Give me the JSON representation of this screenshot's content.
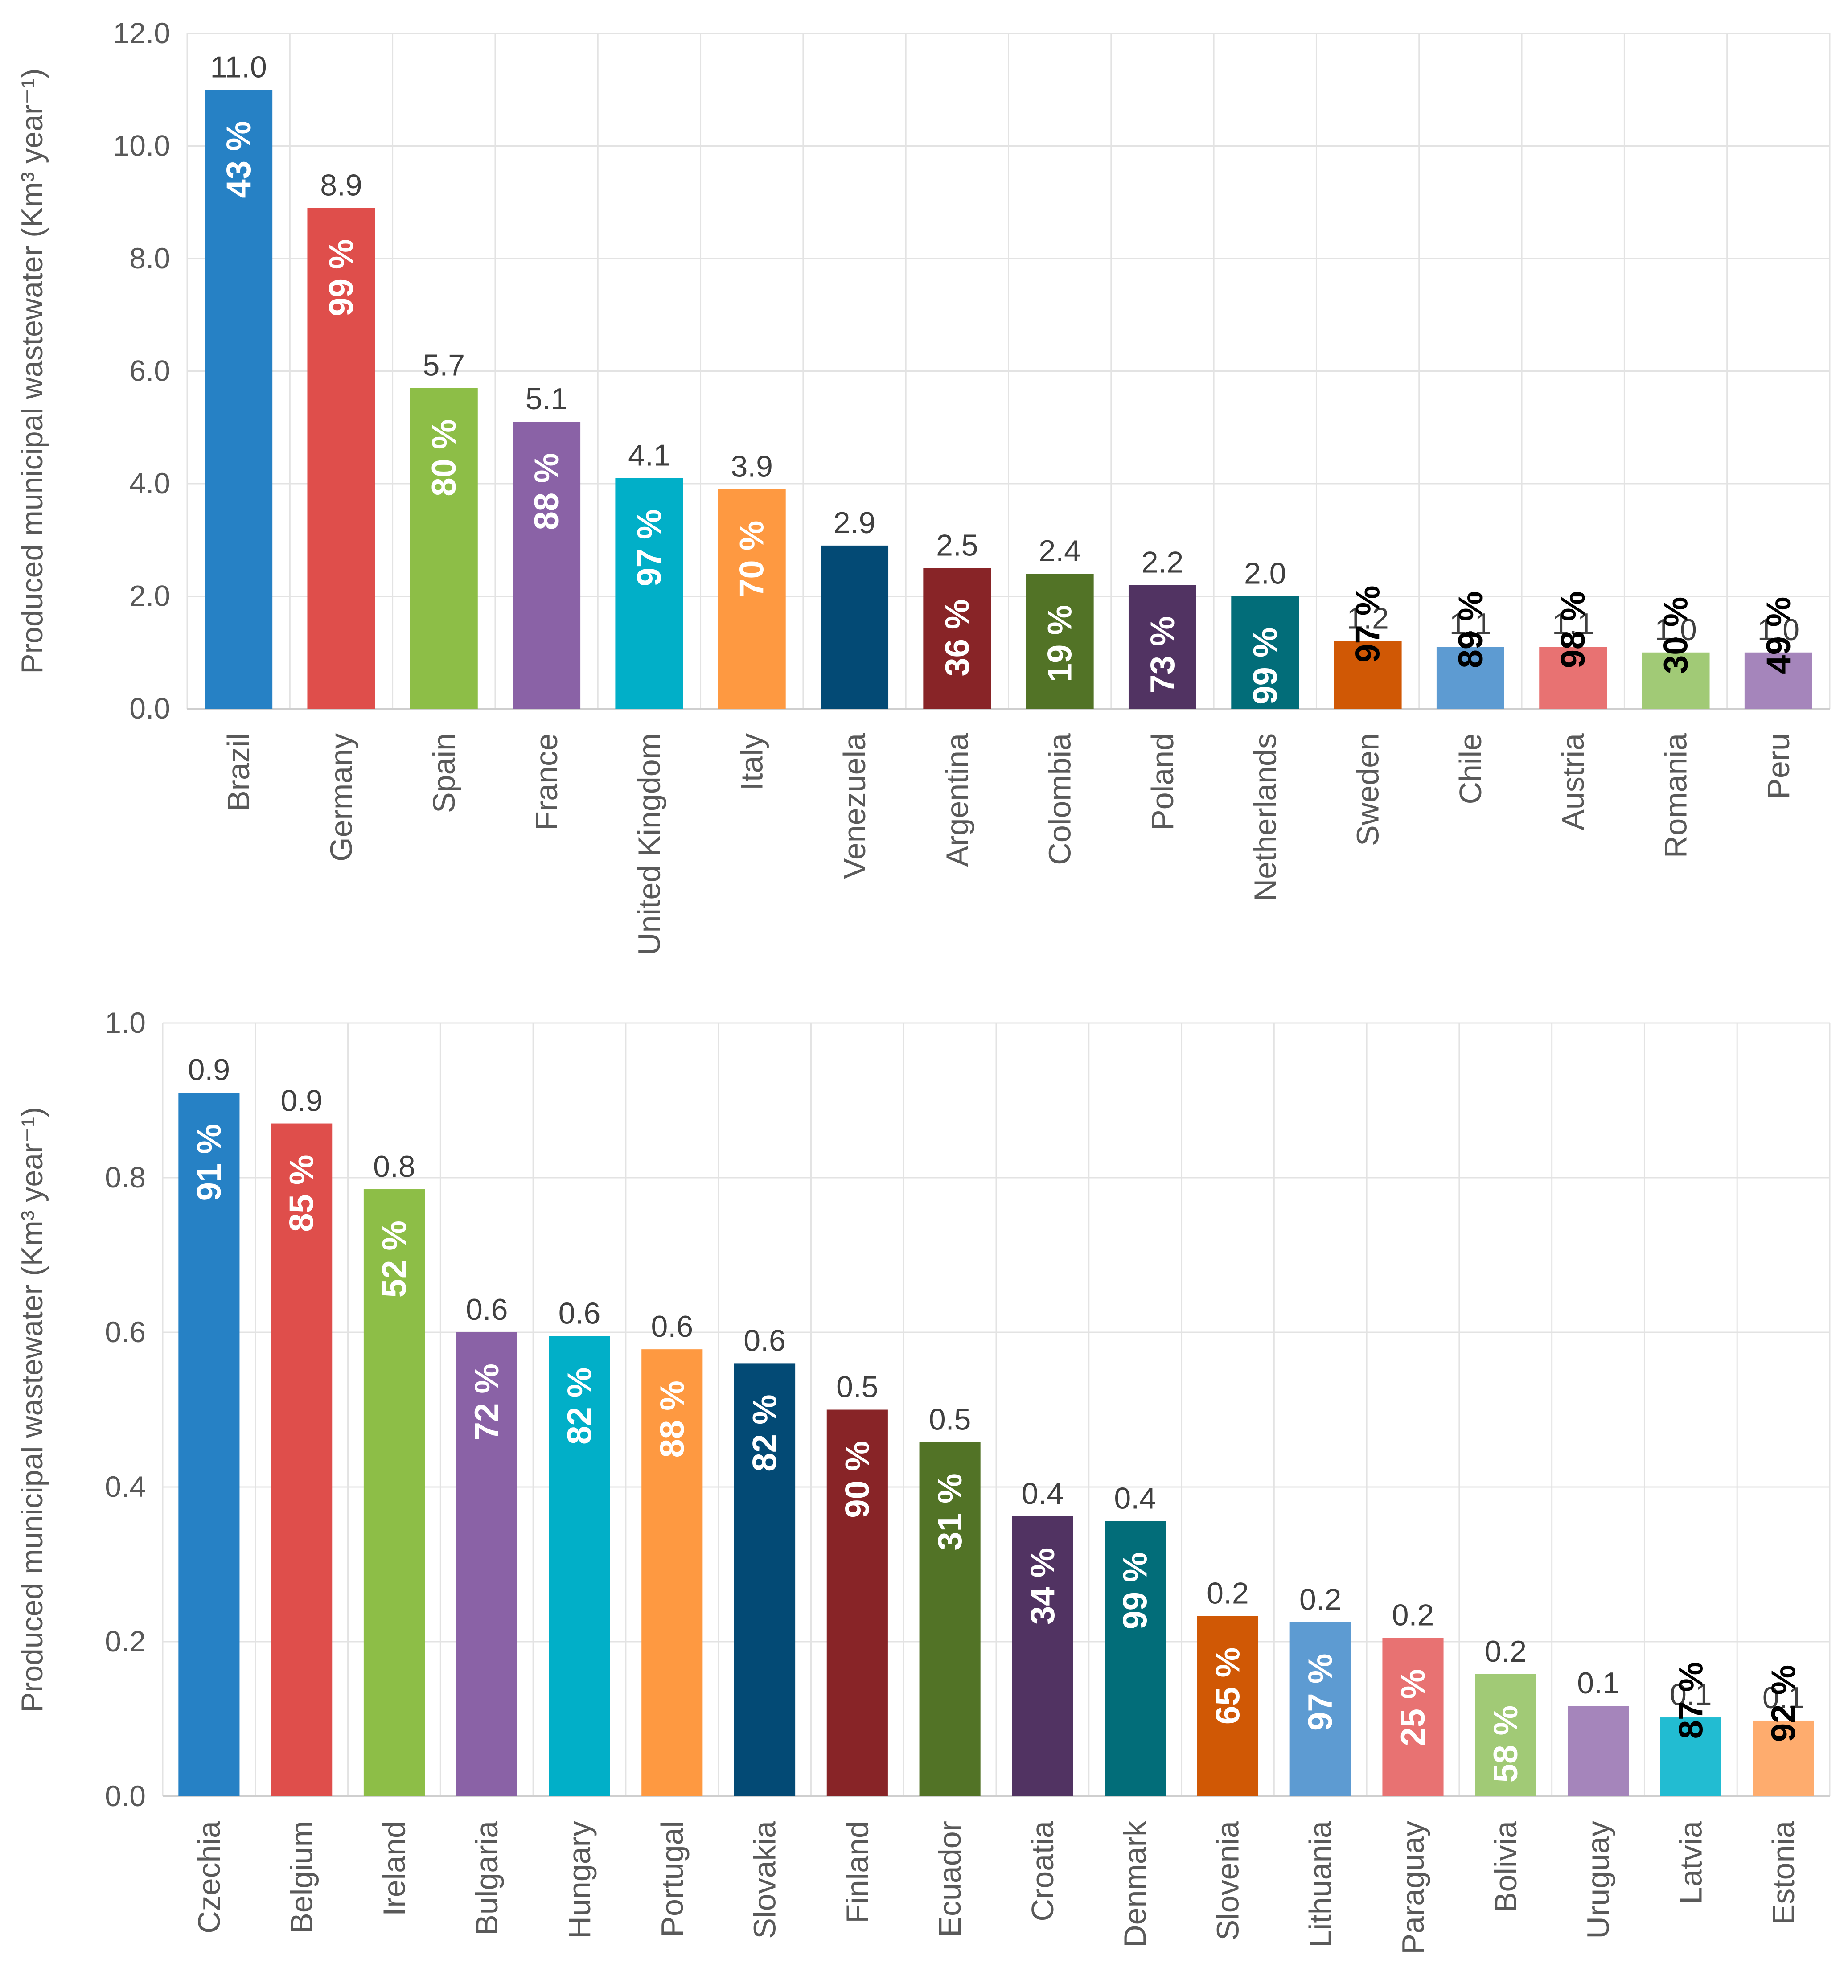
{
  "chart_data": [
    {
      "type": "bar",
      "ylabel": "Produced municipal wastewater (Km³ year⁻¹)",
      "ylim": [
        0,
        12
      ],
      "yticks": [
        "0.0",
        "2.0",
        "4.0",
        "6.0",
        "8.0",
        "10.0",
        "12.0"
      ],
      "categories": [
        "Brazil",
        "Germany",
        "Spain",
        "France",
        "United Kingdom",
        "Italy",
        "Venezuela",
        "Argentina",
        "Colombia",
        "Poland",
        "Netherlands",
        "Sweden",
        "Chile",
        "Austria",
        "Romania",
        "Peru"
      ],
      "values": [
        11.0,
        8.9,
        5.7,
        5.1,
        4.1,
        3.9,
        2.9,
        2.5,
        2.4,
        2.2,
        2.0,
        1.2,
        1.1,
        1.1,
        1.0,
        1.0
      ],
      "value_labels": [
        "11.0",
        "8.9",
        "5.7",
        "5.1",
        "4.1",
        "3.9",
        "2.9",
        "2.5",
        "2.4",
        "2.2",
        "2.0",
        "1.2",
        "1.1",
        "1.1",
        "1.0",
        "1.0"
      ],
      "percent_labels": [
        "43 %",
        "99 %",
        "80 %",
        "88 %",
        "97 %",
        "70 %",
        "",
        "36 %",
        "19 %",
        "73 %",
        "99 %",
        "97 %",
        "89 %",
        "98 %",
        "30 %",
        "49 %"
      ],
      "percent_outside": [
        false,
        false,
        false,
        false,
        false,
        false,
        false,
        false,
        false,
        false,
        false,
        true,
        true,
        true,
        true,
        true
      ],
      "colors": [
        "#2681C5",
        "#DF4E4B",
        "#8DBE47",
        "#8A62A6",
        "#01AFC8",
        "#FE9941",
        "#034A75",
        "#882427",
        "#527326",
        "#513362",
        "#026D79",
        "#D05805",
        "#5D9BD2",
        "#E87272",
        "#A1CA76",
        "#A585BB"
      ]
    },
    {
      "type": "bar",
      "ylabel": "Produced municipal wastewater (Km³ year⁻¹)",
      "ylim": [
        0,
        1
      ],
      "yticks": [
        "0.0",
        "0.2",
        "0.4",
        "0.6",
        "0.8",
        "1.0"
      ],
      "categories": [
        "Czechia",
        "Belgium",
        "Ireland",
        "Bulgaria",
        "Hungary",
        "Portugal",
        "Slovakia",
        "Finland",
        "Ecuador",
        "Croatia",
        "Denmark",
        "Slovenia",
        "Lithuania",
        "Paraguay",
        "Bolivia",
        "Uruguay",
        "Latvia",
        "Estonia"
      ],
      "values": [
        0.91,
        0.87,
        0.785,
        0.6,
        0.595,
        0.578,
        0.56,
        0.5,
        0.458,
        0.362,
        0.356,
        0.233,
        0.225,
        0.205,
        0.158,
        0.117,
        0.102,
        0.098
      ],
      "value_labels": [
        "0.9",
        "0.9",
        "0.8",
        "0.6",
        "0.6",
        "0.6",
        "0.6",
        "0.5",
        "0.5",
        "0.4",
        "0.4",
        "0.2",
        "0.2",
        "0.2",
        "0.2",
        "0.1",
        "0.1",
        "0.1"
      ],
      "percent_labels": [
        "91 %",
        "85 %",
        "52 %",
        "72 %",
        "82 %",
        "88 %",
        "82 %",
        "90 %",
        "31 %",
        "34 %",
        "99 %",
        "65 %",
        "97 %",
        "25 %",
        "58 %",
        "",
        "87 %",
        "92 %"
      ],
      "percent_outside": [
        false,
        false,
        false,
        false,
        false,
        false,
        false,
        false,
        false,
        false,
        false,
        false,
        false,
        false,
        false,
        false,
        true,
        true
      ],
      "colors": [
        "#2681C5",
        "#DF4E4B",
        "#8DBE47",
        "#8A62A6",
        "#01AFC8",
        "#FE9941",
        "#034A75",
        "#882427",
        "#527326",
        "#513362",
        "#026D79",
        "#D05805",
        "#5D9BD2",
        "#E87272",
        "#A1CA76",
        "#A585BB",
        "#22BCD2",
        "#FEAC6E"
      ]
    }
  ]
}
